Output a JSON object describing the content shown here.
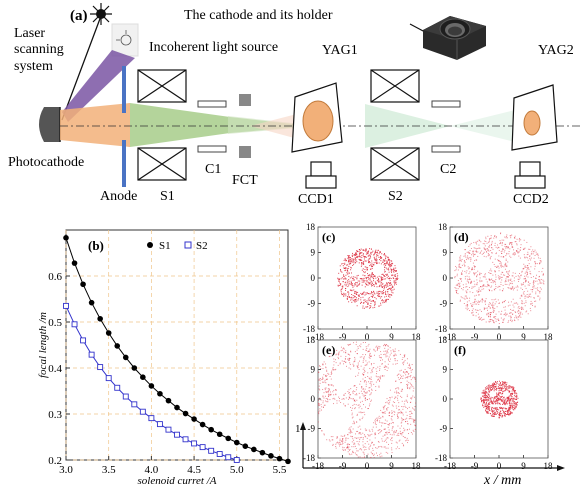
{
  "schematic": {
    "panel_label": "(a)",
    "cathode_label": "The cathode and its holder",
    "laser_label_1": "Laser",
    "laser_label_2": "scanning",
    "laser_label_3": "system",
    "incoherent_label": "Incoherent light source",
    "photocathode_label": "Photocathode",
    "anode_label": "Anode",
    "s1_label": "S1",
    "c1_label": "C1",
    "fct_label": "FCT",
    "yag1_label": "YAG1",
    "ccd1_label": "CCD1",
    "s2_label": "S2",
    "c2_label": "C2",
    "yag2_label": "YAG2",
    "ccd2_label": "CCD2"
  },
  "chart_data": [
    {
      "type": "line",
      "panel_label": "(b)",
      "xlabel": "solenoid curret /A",
      "ylabel": "focal length /m",
      "xlim": [
        3.0,
        5.6
      ],
      "ylim": [
        0.2,
        0.7
      ],
      "xticks": [
        "3.0",
        "3.5",
        "4.0",
        "4.5",
        "5.0",
        "5.5"
      ],
      "yticks": [
        "0.2",
        "0.3",
        "0.4",
        "0.5",
        "0.6"
      ],
      "grid": true,
      "legend_position": "top",
      "series": [
        {
          "name": "S1",
          "marker": "filled-circle",
          "color": "#000000",
          "x": [
            3.0,
            3.1,
            3.2,
            3.3,
            3.4,
            3.5,
            3.6,
            3.7,
            3.8,
            3.9,
            4.0,
            4.1,
            4.2,
            4.3,
            4.4,
            4.5,
            4.6,
            4.7,
            4.8,
            4.9,
            5.0,
            5.1,
            5.2,
            5.3,
            5.4,
            5.5,
            5.6
          ],
          "y": [
            0.683,
            0.628,
            0.582,
            0.542,
            0.507,
            0.476,
            0.448,
            0.423,
            0.4,
            0.38,
            0.361,
            0.344,
            0.329,
            0.314,
            0.301,
            0.289,
            0.277,
            0.266,
            0.256,
            0.247,
            0.238,
            0.23,
            0.223,
            0.216,
            0.209,
            0.203,
            0.197
          ]
        },
        {
          "name": "S2",
          "marker": "open-square",
          "color": "#3333cc",
          "x": [
            3.0,
            3.1,
            3.2,
            3.3,
            3.4,
            3.5,
            3.6,
            3.7,
            3.8,
            3.9,
            4.0,
            4.1,
            4.2,
            4.3,
            4.4,
            4.5,
            4.6,
            4.7,
            4.8,
            4.9,
            5.0
          ],
          "y": [
            0.535,
            0.495,
            0.46,
            0.429,
            0.402,
            0.378,
            0.357,
            0.338,
            0.321,
            0.305,
            0.291,
            0.278,
            0.266,
            0.255,
            0.245,
            0.236,
            0.228,
            0.22,
            0.213,
            0.206,
            0.2
          ]
        }
      ]
    },
    {
      "type": "scatter",
      "description_panels": [
        "(c)",
        "(d)",
        "(e)",
        "(f)"
      ],
      "xlabel": "x / mm",
      "ylabel": "y",
      "xticks": [
        "-18",
        "-9",
        "0",
        "9",
        "18"
      ],
      "yticks": [
        "18",
        "9",
        "0",
        "-9",
        "-18"
      ],
      "ylabel_partial": "1",
      "point_color": "#dd3344"
    }
  ]
}
